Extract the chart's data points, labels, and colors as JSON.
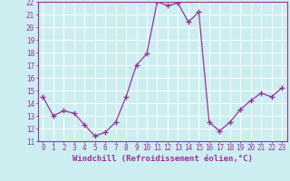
{
  "x": [
    0,
    1,
    2,
    3,
    4,
    5,
    6,
    7,
    8,
    9,
    10,
    11,
    12,
    13,
    14,
    15,
    16,
    17,
    18,
    19,
    20,
    21,
    22,
    23
  ],
  "y": [
    14.5,
    13.0,
    13.4,
    13.2,
    12.3,
    11.4,
    11.7,
    12.5,
    14.5,
    17.0,
    17.9,
    22.0,
    21.7,
    21.9,
    20.4,
    21.2,
    12.5,
    11.8,
    12.5,
    13.5,
    14.2,
    14.8,
    14.5,
    15.2
  ],
  "line_color": "#993399",
  "marker": "+",
  "markersize": 4,
  "linewidth": 0.9,
  "xlabel": "Windchill (Refroidissement éolien,°C)",
  "xlabel_fontsize": 6.5,
  "ylim": [
    11,
    22
  ],
  "xlim": [
    -0.5,
    23.5
  ],
  "yticks": [
    11,
    12,
    13,
    14,
    15,
    16,
    17,
    18,
    19,
    20,
    21,
    22
  ],
  "xticks": [
    0,
    1,
    2,
    3,
    4,
    5,
    6,
    7,
    8,
    9,
    10,
    11,
    12,
    13,
    14,
    15,
    16,
    17,
    18,
    19,
    20,
    21,
    22,
    23
  ],
  "tick_fontsize": 5.5,
  "bg_color": "#cceef0",
  "grid_color": "#ffffff",
  "axis_color": "#993399",
  "spine_color": "#993399"
}
